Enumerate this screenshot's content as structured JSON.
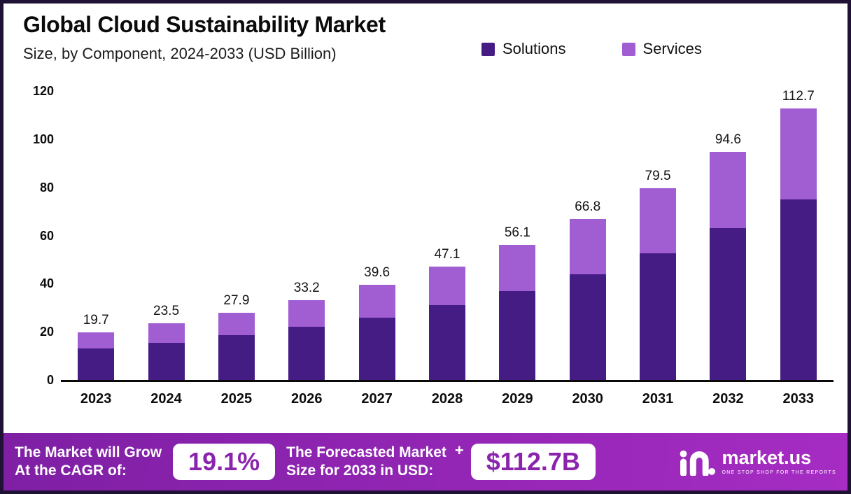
{
  "chart_data": {
    "type": "bar",
    "stacked": true,
    "title": "Global Cloud Sustainability Market",
    "subtitle": "Size, by Component, 2024-2033 (USD Billion)",
    "categories": [
      "2023",
      "2024",
      "2025",
      "2026",
      "2027",
      "2028",
      "2029",
      "2030",
      "2031",
      "2032",
      "2033"
    ],
    "series": [
      {
        "name": "Solutions",
        "color": "#451c83",
        "values": [
          13,
          15.5,
          18.5,
          22,
          26,
          31,
          37,
          44,
          52.5,
          63,
          75
        ]
      },
      {
        "name": "Services",
        "color": "#a15ed3",
        "values": [
          6.7,
          8.0,
          9.4,
          11.2,
          13.6,
          16.1,
          19.1,
          22.8,
          27.0,
          31.6,
          37.7
        ]
      }
    ],
    "totals": [
      19.7,
      23.5,
      27.9,
      33.2,
      39.6,
      47.1,
      56.1,
      66.8,
      79.5,
      94.6,
      112.7
    ],
    "xlabel": "",
    "ylabel": "",
    "ylim": [
      0,
      120
    ],
    "yticks": [
      0,
      20,
      40,
      60,
      80,
      100,
      120
    ],
    "grid": false,
    "legend_position": "top-right"
  },
  "colors": {
    "solutions": "#451c83",
    "services": "#a15ed3",
    "banner_start": "#7e1fa4",
    "banner_end": "#a62cc3",
    "pill_text": "#8a24ad",
    "frame_border": "#1f1235"
  },
  "footer": {
    "cagr_label_line1": "The Market will Grow",
    "cagr_label_line2": "At the CAGR of:",
    "cagr_value": "19.1%",
    "forecast_label_line1": "The Forecasted Market",
    "forecast_label_line2": "Size for 2033 in USD:",
    "plus": "+",
    "forecast_value": "$112.7B",
    "brand": "market.us",
    "brand_tagline": "ONE STOP SHOP FOR THE REPORTS"
  }
}
